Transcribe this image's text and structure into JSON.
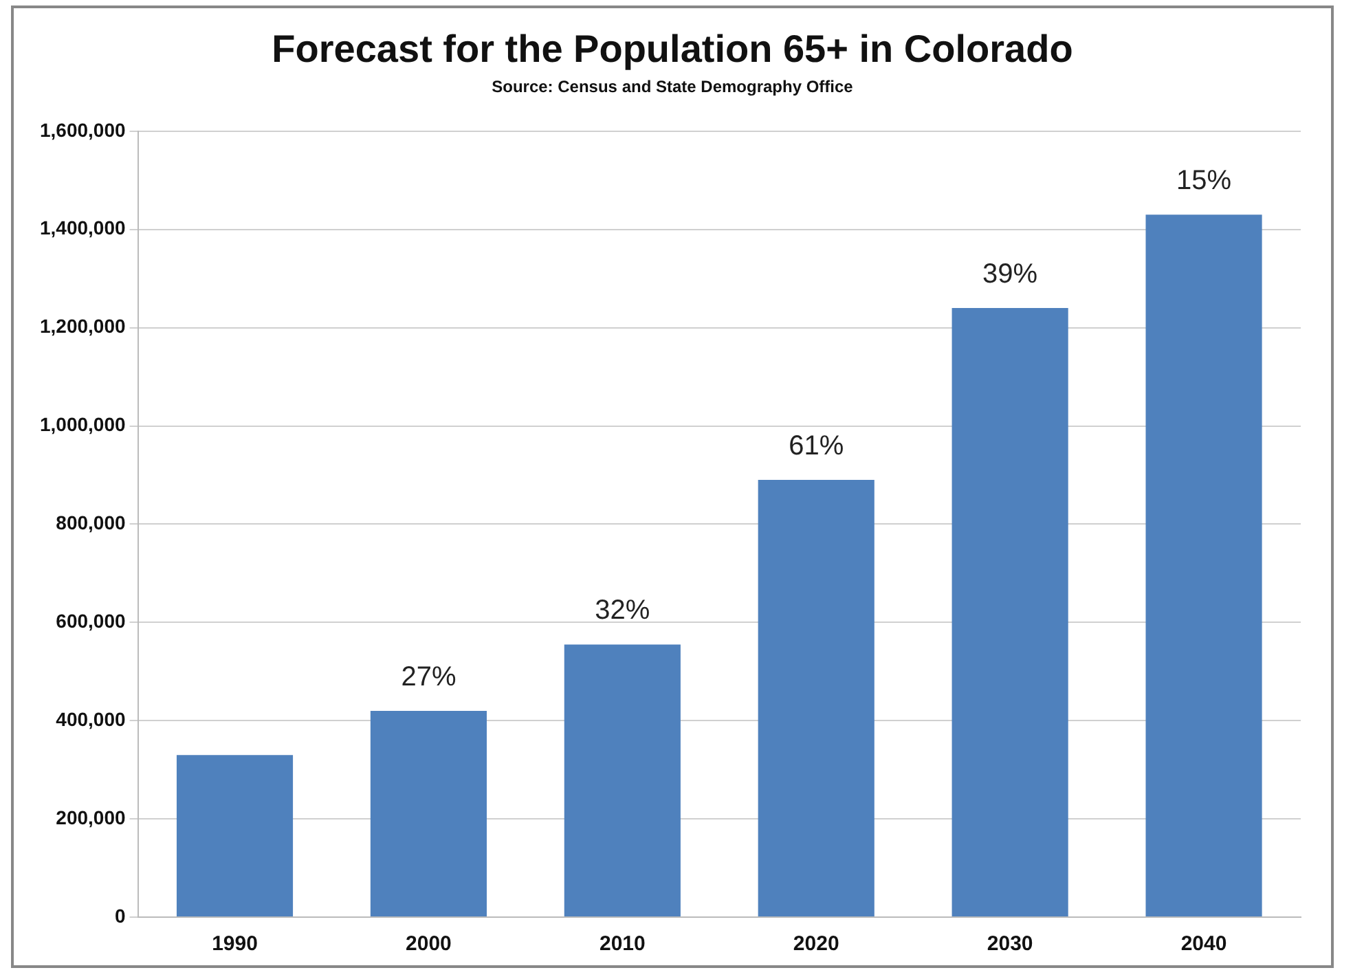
{
  "chart_data": {
    "type": "bar",
    "title": "Forecast for the Population 65+ in Colorado",
    "annotations": [
      "Source: Census and State Demography Office",
      {
        "text": "27%",
        "x": "2000",
        "y": 420000
      },
      {
        "text": "32%",
        "x": "2010",
        "y": 555000
      },
      {
        "text": "61%",
        "x": "2020",
        "y": 890000
      },
      {
        "text": "39%",
        "x": "2030",
        "y": 1240000
      },
      {
        "text": "15%",
        "x": "2040",
        "y": 1430000
      }
    ],
    "categories": [
      "1990",
      "2000",
      "2010",
      "2020",
      "2030",
      "2040"
    ],
    "values": [
      330000,
      420000,
      555000,
      890000,
      1240000,
      1430000
    ],
    "color": "#4f81bd",
    "ylim": [
      0,
      1600000
    ],
    "yticks": [
      0,
      {
        "value": 200000,
        "label": "200,000"
      },
      {
        "value": 400000,
        "label": "400,000"
      },
      {
        "value": 600000,
        "label": "600,000"
      },
      {
        "value": 800000,
        "label": "800,000"
      },
      {
        "value": 1000000,
        "label": "1,000,000"
      },
      {
        "value": 1200000,
        "label": "1,200,000"
      },
      {
        "value": 1400000,
        "label": "1,400,000"
      },
      {
        "value": 1600000,
        "label": "1,600,000"
      }
    ],
    "grid": "y",
    "legend": false
  }
}
